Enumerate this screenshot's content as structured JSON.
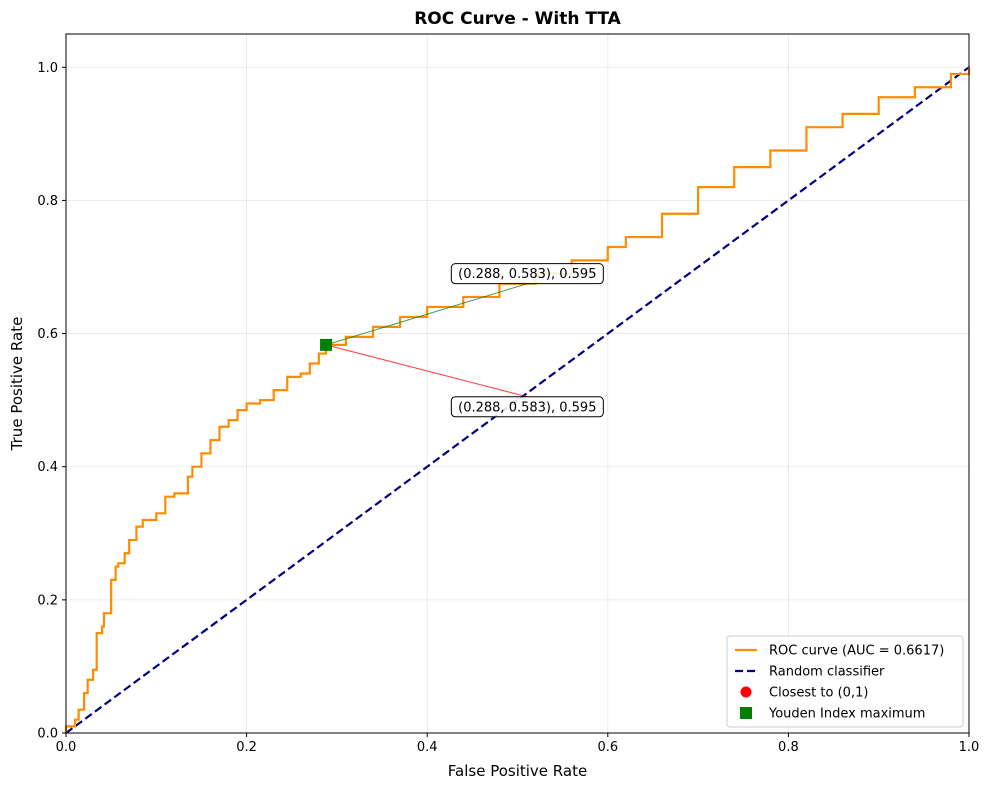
{
  "chart_data": {
    "type": "line",
    "title": "ROC Curve - With TTA",
    "xlabel": "False Positive Rate",
    "ylabel": "True Positive Rate",
    "xlim": [
      0.0,
      1.0
    ],
    "ylim": [
      0.0,
      1.05
    ],
    "grid": true,
    "x_ticks": [
      "0.0",
      "0.2",
      "0.4",
      "0.6",
      "0.8",
      "1.0"
    ],
    "y_ticks": [
      "0.0",
      "0.2",
      "0.4",
      "0.6",
      "0.8",
      "1.0"
    ],
    "x_tick_values": [
      0.0,
      0.2,
      0.4,
      0.6,
      0.8,
      1.0
    ],
    "y_tick_values": [
      0.0,
      0.2,
      0.4,
      0.6,
      0.8,
      1.0
    ],
    "series": [
      {
        "name": "ROC curve (AUC = 0.6617)",
        "color": "#ff8c00",
        "style": "solid",
        "x": [
          0.0,
          0.0,
          0.01,
          0.014,
          0.02,
          0.024,
          0.03,
          0.034,
          0.034,
          0.04,
          0.042,
          0.042,
          0.05,
          0.05,
          0.055,
          0.058,
          0.065,
          0.07,
          0.078,
          0.085,
          0.1,
          0.11,
          0.12,
          0.135,
          0.14,
          0.15,
          0.16,
          0.17,
          0.18,
          0.19,
          0.2,
          0.215,
          0.23,
          0.245,
          0.26,
          0.27,
          0.28,
          0.288,
          0.31,
          0.34,
          0.37,
          0.4,
          0.44,
          0.48,
          0.52,
          0.56,
          0.6,
          0.62,
          0.66,
          0.7,
          0.74,
          0.78,
          0.82,
          0.86,
          0.9,
          0.94,
          0.98,
          1.0
        ],
        "y": [
          0.0,
          0.01,
          0.02,
          0.035,
          0.06,
          0.08,
          0.095,
          0.145,
          0.15,
          0.16,
          0.18,
          0.18,
          0.21,
          0.23,
          0.25,
          0.255,
          0.27,
          0.29,
          0.31,
          0.32,
          0.33,
          0.355,
          0.36,
          0.385,
          0.4,
          0.42,
          0.44,
          0.46,
          0.47,
          0.485,
          0.495,
          0.5,
          0.515,
          0.535,
          0.54,
          0.555,
          0.57,
          0.583,
          0.595,
          0.61,
          0.625,
          0.64,
          0.655,
          0.675,
          0.69,
          0.71,
          0.73,
          0.745,
          0.78,
          0.82,
          0.85,
          0.875,
          0.91,
          0.93,
          0.955,
          0.97,
          0.99,
          1.0
        ]
      },
      {
        "name": "Random classifier",
        "color": "#000080",
        "style": "dashed",
        "x": [
          0.0,
          1.0
        ],
        "y": [
          0.0,
          1.0
        ]
      }
    ],
    "markers": [
      {
        "name": "Closest to (0,1)",
        "color": "#ff0000",
        "shape": "circle",
        "x": 0.288,
        "y": 0.583
      },
      {
        "name": "Youden Index maximum",
        "color": "#008000",
        "shape": "square",
        "x": 0.288,
        "y": 0.583
      }
    ],
    "annotations": [
      {
        "text": "(0.288, 0.583), 0.595",
        "xy": [
          0.288,
          0.583
        ],
        "xytext": [
          0.44,
          0.69
        ],
        "arrow_color": "#008000"
      },
      {
        "text": "(0.288, 0.583), 0.595",
        "xy": [
          0.288,
          0.583
        ],
        "xytext": [
          0.44,
          0.49
        ],
        "arrow_color": "#ff0000"
      }
    ],
    "legend": {
      "position": "lower-right",
      "entries": [
        "ROC curve (AUC = 0.6617)",
        "Random classifier",
        "Closest to (0,1)",
        "Youden Index maximum"
      ]
    }
  }
}
